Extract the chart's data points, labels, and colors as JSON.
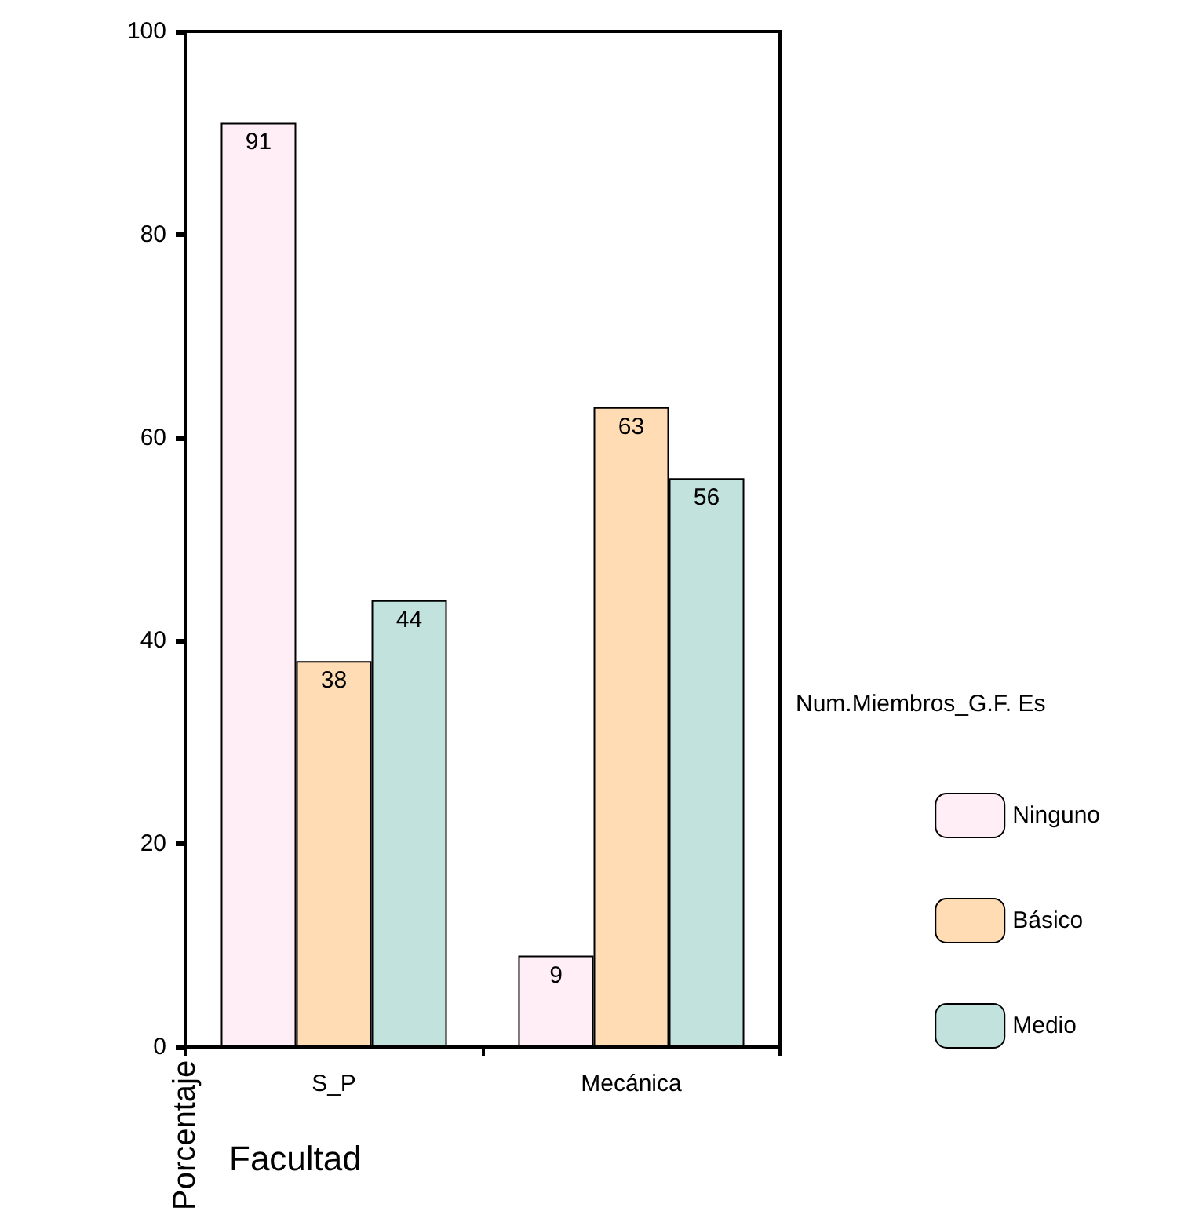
{
  "chart_data": {
    "type": "bar",
    "xlabel": "Facultad",
    "ylabel": "Porcentaje",
    "legend_title": "Num.Miembros_G.F. Es",
    "categories": [
      "S_P",
      "Mecánica"
    ],
    "series": [
      {
        "name": "Ninguno",
        "color": "#ffeef6",
        "values": [
          91,
          9
        ]
      },
      {
        "name": "Básico",
        "color": "#ffdcb4",
        "values": [
          38,
          63
        ]
      },
      {
        "name": "Medio",
        "color": "#c2e2de",
        "values": [
          44,
          56
        ]
      }
    ],
    "ylim": [
      0,
      100
    ],
    "yticks": [
      0,
      20,
      40,
      60,
      80,
      100
    ],
    "grid": false,
    "legend": "right",
    "data_labels": true
  }
}
